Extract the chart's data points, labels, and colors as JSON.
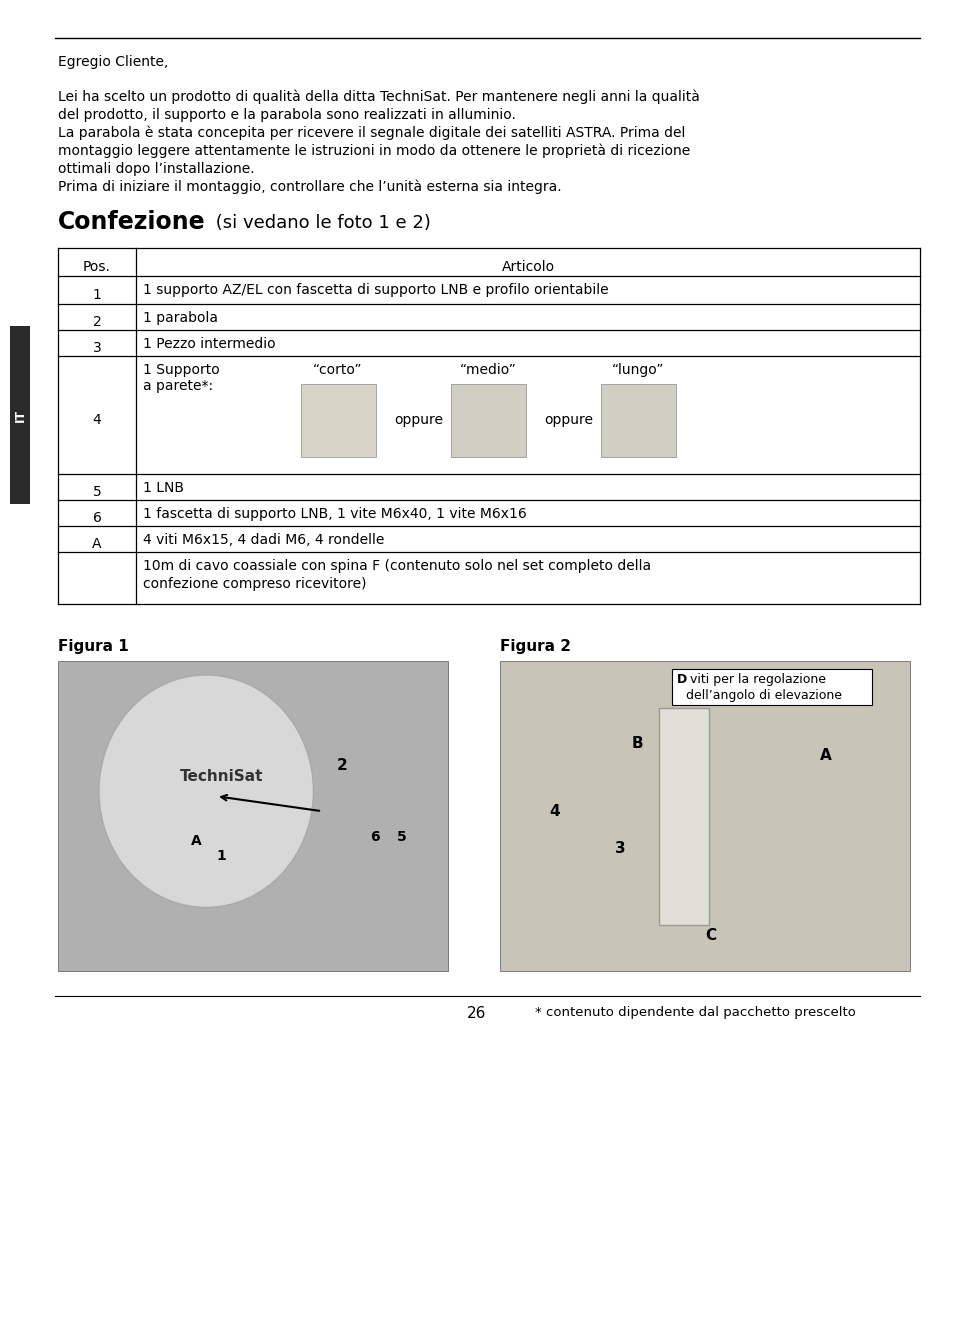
{
  "page_bg": "#ffffff",
  "sidebar_color": "#2a2a2a",
  "sidebar_label": "IT",
  "greeting": "Egregio Cliente,",
  "body_para1": [
    "Lei ha scelto un prodotto di qualità della ditta TechniSat. Per mantenere negli anni la qualità",
    "del prodotto, il supporto e la parabola sono realizzati in alluminio."
  ],
  "body_para2": [
    "La parabola è stata concepita per ricevere il segnale digitale dei satelliti ASTRA. Prima del",
    "montaggio leggere attentamente le istruzioni in modo da ottenere le proprietà di ricezione",
    "ottimali dopo l’installazione.",
    "Prima di iniziare il montaggio, controllare che l’unità esterna sia integra."
  ],
  "section_title_bold": "Confezione",
  "section_title_normal": " (si vedano le foto 1 e 2)",
  "figura1_label": "Figura 1",
  "figura2_label": "Figura 2",
  "page_number": "26",
  "footnote": "* contenuto dipendente dal pacchetto prescelto",
  "fig2_annotation_bold": "D",
  "fig2_annotation_rest": " viti per la regolazione\ndell’angolo di elevazione",
  "row4_support_text": "1 Supporto\na parete*:",
  "row4_corto": "“corto”",
  "row4_medio": "“medio”",
  "row4_lungo": "“lungo”",
  "row4_oppure": "oppure"
}
